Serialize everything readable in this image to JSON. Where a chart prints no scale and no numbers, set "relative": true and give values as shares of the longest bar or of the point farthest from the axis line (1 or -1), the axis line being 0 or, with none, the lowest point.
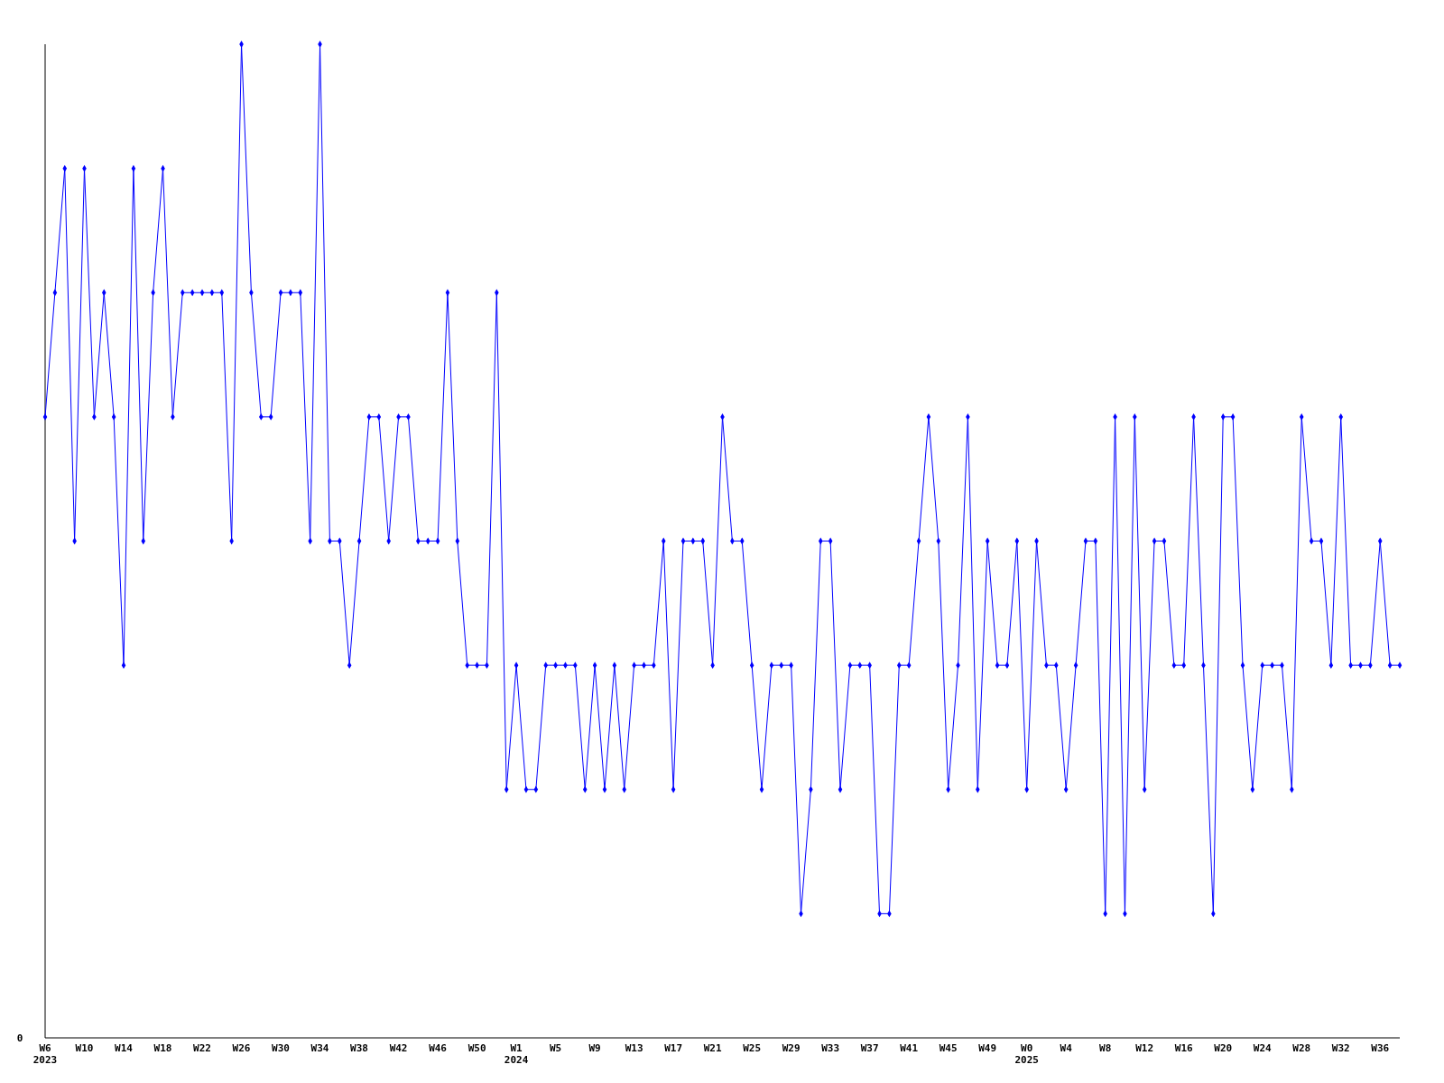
{
  "chart_data": {
    "type": "line",
    "relative": true,
    "marker": "diamond",
    "line_style": "solid",
    "annotations": [
      "0"
    ],
    "categories": [
      "W6\n2023",
      null,
      null,
      null,
      "W10",
      null,
      null,
      null,
      "W14",
      null,
      null,
      null,
      "W18",
      null,
      null,
      null,
      "W22",
      null,
      null,
      null,
      "W26",
      null,
      null,
      null,
      "W30",
      null,
      null,
      null,
      "W34",
      null,
      null,
      null,
      "W38",
      null,
      null,
      null,
      "W42",
      null,
      null,
      null,
      "W46",
      null,
      null,
      null,
      "W50",
      null,
      null,
      null,
      "W1\n2024",
      null,
      null,
      null,
      "W5",
      null,
      null,
      null,
      "W9",
      null,
      null,
      null,
      "W13",
      null,
      null,
      null,
      "W17",
      null,
      null,
      null,
      "W21",
      null,
      null,
      null,
      "W25",
      null,
      null,
      null,
      "W29",
      null,
      null,
      null,
      "W33",
      null,
      null,
      null,
      "W37",
      null,
      null,
      null,
      "W41",
      null,
      null,
      null,
      "W45",
      null,
      null,
      null,
      "W49",
      null,
      null,
      null,
      "W0\n2025",
      null,
      null,
      null,
      "W4",
      null,
      null,
      null,
      "W8",
      null,
      null,
      null,
      "W12",
      null,
      null,
      null,
      "W16",
      null,
      null,
      null,
      "W20",
      null,
      null,
      null,
      "W24",
      null,
      null,
      null,
      "W28",
      null,
      null,
      null,
      "W32",
      null,
      null,
      null,
      "W36",
      null,
      null
    ],
    "series": [
      {
        "color": "#0000ff",
        "values": [
          0.625,
          0.75,
          0.875,
          0.5,
          0.875,
          0.625,
          0.75,
          0.625,
          0.375,
          0.875,
          0.5,
          0.75,
          0.875,
          0.625,
          0.75,
          0.75,
          0.75,
          0.75,
          0.75,
          0.5,
          1,
          0.75,
          0.625,
          0.625,
          0.75,
          0.75,
          0.75,
          0.5,
          1,
          0.5,
          0.5,
          0.375,
          0.5,
          0.625,
          0.625,
          0.5,
          0.625,
          0.625,
          0.5,
          0.5,
          0.5,
          0.75,
          0.5,
          0.375,
          0.375,
          0.375,
          0.75,
          0.25,
          0.375,
          0.25,
          0.25,
          0.375,
          0.375,
          0.375,
          0.375,
          0.25,
          0.375,
          0.25,
          0.375,
          0.25,
          0.375,
          0.375,
          0.375,
          0.5,
          0.25,
          0.5,
          0.5,
          0.5,
          0.375,
          0.625,
          0.5,
          0.5,
          0.375,
          0.25,
          0.375,
          0.375,
          0.375,
          0.125,
          0.25,
          0.5,
          0.5,
          0.25,
          0.375,
          0.375,
          0.375,
          0.125,
          0.125,
          0.375,
          0.375,
          0.5,
          0.625,
          0.5,
          0.25,
          0.375,
          0.625,
          0.25,
          0.5,
          0.375,
          0.375,
          0.5,
          0.25,
          0.5,
          0.375,
          0.375,
          0.25,
          0.375,
          0.5,
          0.5,
          0.125,
          0.625,
          0.125,
          0.625,
          0.25,
          0.5,
          0.5,
          0.375,
          0.375,
          0.625,
          0.375,
          0.125,
          0.625,
          0.625,
          0.375,
          0.25,
          0.375,
          0.375,
          0.375,
          0.25,
          0.625,
          0.5,
          0.5,
          0.375,
          0.625,
          0.375,
          0.375,
          0.375,
          0.5,
          0.375,
          0.375
        ]
      }
    ]
  }
}
